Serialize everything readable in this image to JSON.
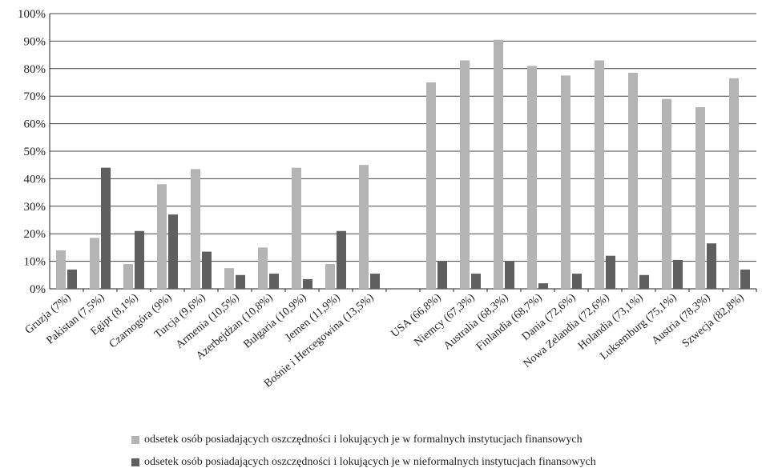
{
  "chart_data": {
    "type": "bar",
    "categories": [
      "Gruzja (7%)",
      "Pakistan (7,5%)",
      "Egipt (8,1%)",
      "Czarnogóra (9%)",
      "Turcja (9,6%)",
      "Armenia (10,5%)",
      "Azerbejdżan (10,8%)",
      "Bułgaria (10,9%)",
      "Jemen (11,9%)",
      "Bośnie i Hercegowina (13,5%)",
      "",
      "USA (66,8%)",
      "Niemcy (67,3%)",
      "Australia (68,3%)",
      "Finlandia (68,7%)",
      "Dania (72,6%)",
      "Nowa Zelandia (72,6%)",
      "Holandia (73,1%)",
      "Luksemburg (75,1%)",
      "Austria (78,3%)",
      "Szwecja (82,8%)"
    ],
    "series": [
      {
        "name": "odsetek osób posiadających oszczędności i lokujących je w formalnych instytucjach finansowych",
        "color": "#b4b4b4",
        "values": [
          14,
          18.5,
          9,
          38,
          43.5,
          7.5,
          15,
          44,
          9,
          45,
          null,
          75,
          83,
          90.5,
          81,
          77.5,
          83,
          78.5,
          69,
          66,
          76.5
        ]
      },
      {
        "name": "odsetek osób posiadających oszczędności i lokujących je w nieformalnych instytucjach finansowych",
        "color": "#5f5f5f",
        "values": [
          7,
          44,
          21,
          27,
          13.5,
          5,
          5.5,
          3.5,
          21,
          5.5,
          null,
          10,
          5.5,
          10,
          2,
          5.5,
          12,
          5,
          10.5,
          16.5,
          7
        ]
      }
    ],
    "yticks": [
      "0%",
      "10%",
      "20%",
      "30%",
      "40%",
      "50%",
      "60%",
      "70%",
      "80%",
      "90%",
      "100%"
    ],
    "ylim": [
      0,
      100
    ],
    "grid": true,
    "legend_position": "bottom",
    "title": "",
    "xlabel": "",
    "ylabel": ""
  }
}
